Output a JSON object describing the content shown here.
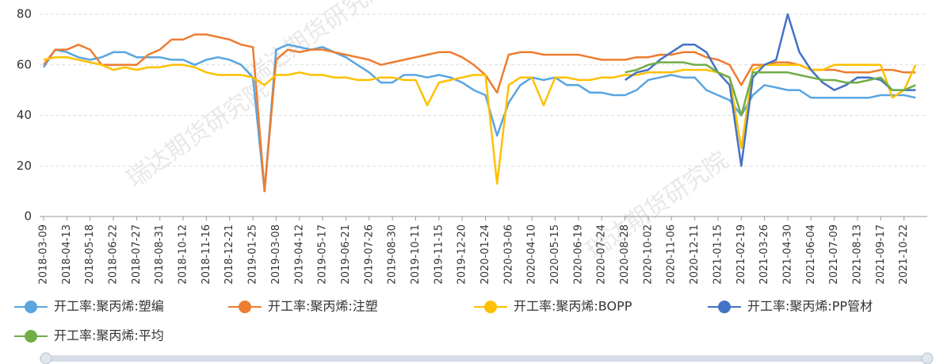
{
  "chart_data": {
    "type": "line",
    "watermark": "瑞达期货研究院",
    "categories": [
      "2018-03-09",
      null,
      "2018-04-13",
      null,
      "2018-05-18",
      null,
      "2018-06-22",
      null,
      "2018-07-27",
      null,
      "2018-08-31",
      null,
      "2018-10-12",
      null,
      "2018-11-16",
      null,
      "2018-12-21",
      null,
      "2019-01-25",
      null,
      "2019-03-08",
      null,
      "2019-04-12",
      null,
      "2019-05-17",
      null,
      "2019-06-21",
      null,
      "2019-07-26",
      null,
      "2019-08-30",
      null,
      "2019-10-11",
      null,
      "2019-11-15",
      null,
      "2019-12-20",
      null,
      "2020-01-24",
      null,
      "2020-03-06",
      null,
      "2020-04-10",
      null,
      "2020-05-15",
      null,
      "2020-06-19",
      null,
      "2020-07-24",
      null,
      "2020-08-28",
      null,
      "2020-10-02",
      null,
      "2020-11-06",
      null,
      "2020-12-11",
      null,
      "2021-01-15",
      null,
      "2021-02-19",
      null,
      "2021-03-26",
      null,
      "2021-04-30",
      null,
      "2021-06-04",
      null,
      "2021-07-09",
      null,
      "2021-08-13",
      null,
      "2021-09-17",
      null,
      "2021-10-22",
      null
    ],
    "series": [
      {
        "name": "开工率:聚丙烯:塑编",
        "color": "#5aa5e0",
        "values": [
          59,
          66,
          65,
          63,
          62,
          63,
          65,
          65,
          63,
          63,
          63,
          62,
          62,
          60,
          62,
          63,
          62,
          60,
          55,
          10,
          66,
          68,
          67,
          66,
          67,
          65,
          63,
          60,
          57,
          53,
          53,
          56,
          56,
          55,
          56,
          55,
          53,
          50,
          48,
          32,
          45,
          52,
          55,
          54,
          55,
          52,
          52,
          49,
          49,
          48,
          48,
          50,
          54,
          55,
          56,
          55,
          55,
          50,
          48,
          46,
          40,
          48,
          52,
          51,
          50,
          50,
          47,
          47,
          47,
          47,
          47,
          47,
          48,
          48,
          48,
          47
        ]
      },
      {
        "name": "开工率:聚丙烯:注塑",
        "color": "#ed7d31",
        "values": [
          60,
          66,
          66,
          68,
          66,
          60,
          60,
          60,
          60,
          64,
          66,
          70,
          70,
          72,
          72,
          71,
          70,
          68,
          67,
          10,
          62,
          66,
          65,
          66,
          66,
          65,
          64,
          63,
          62,
          60,
          61,
          62,
          63,
          64,
          65,
          65,
          63,
          60,
          56,
          49,
          64,
          65,
          65,
          64,
          64,
          64,
          64,
          63,
          62,
          62,
          62,
          63,
          63,
          64,
          64,
          65,
          65,
          63,
          62,
          60,
          52,
          60,
          60,
          61,
          61,
          60,
          58,
          58,
          58,
          57,
          57,
          57,
          58,
          58,
          57,
          57
        ]
      },
      {
        "name": "开工率:聚丙烯:BOPP",
        "color": "#ffc000",
        "values": [
          62,
          63,
          63,
          62,
          61,
          60,
          58,
          59,
          58,
          59,
          59,
          60,
          60,
          59,
          57,
          56,
          56,
          56,
          55,
          52,
          56,
          56,
          57,
          56,
          56,
          55,
          55,
          54,
          54,
          55,
          55,
          54,
          54,
          44,
          53,
          54,
          55,
          56,
          56,
          13,
          52,
          55,
          55,
          44,
          55,
          55,
          54,
          54,
          55,
          55,
          56,
          56,
          57,
          57,
          57,
          58,
          58,
          58,
          57,
          55,
          27,
          58,
          60,
          60,
          60,
          60,
          58,
          58,
          60,
          60,
          60,
          60,
          60,
          47,
          50,
          60
        ]
      },
      {
        "name": "开工率:聚丙烯:PP管材",
        "color": "#4472c4",
        "values": [
          null,
          null,
          null,
          null,
          null,
          null,
          null,
          null,
          null,
          null,
          null,
          null,
          null,
          null,
          null,
          null,
          null,
          null,
          null,
          null,
          null,
          null,
          null,
          null,
          null,
          null,
          null,
          null,
          null,
          null,
          null,
          null,
          null,
          null,
          null,
          null,
          null,
          null,
          null,
          null,
          null,
          null,
          null,
          null,
          null,
          null,
          null,
          null,
          null,
          null,
          54,
          57,
          58,
          62,
          65,
          68,
          68,
          65,
          57,
          52,
          20,
          55,
          60,
          62,
          80,
          65,
          58,
          53,
          50,
          52,
          55,
          55,
          54,
          50,
          50,
          50
        ]
      },
      {
        "name": "开工率:聚丙烯:平均",
        "color": "#70ad47",
        "values": [
          null,
          null,
          null,
          null,
          null,
          null,
          null,
          null,
          null,
          null,
          null,
          null,
          null,
          null,
          null,
          null,
          null,
          null,
          null,
          null,
          null,
          null,
          null,
          null,
          null,
          null,
          null,
          null,
          null,
          null,
          null,
          null,
          null,
          null,
          null,
          null,
          null,
          null,
          null,
          null,
          null,
          null,
          null,
          null,
          null,
          null,
          null,
          null,
          null,
          null,
          57,
          58,
          60,
          61,
          61,
          61,
          60,
          60,
          57,
          55,
          40,
          57,
          57,
          57,
          57,
          56,
          55,
          54,
          54,
          53,
          53,
          54,
          55,
          50,
          50,
          52
        ]
      }
    ],
    "ylim": [
      0,
      80
    ],
    "yticks": [
      0,
      20,
      40,
      60,
      80
    ],
    "grid": true
  }
}
